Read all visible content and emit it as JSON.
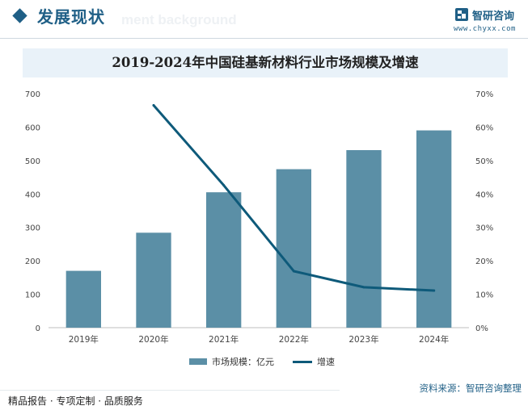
{
  "header": {
    "section_title": "发展现状",
    "ghost_text": "ment background"
  },
  "logo": {
    "name": "智研咨询",
    "url": "www.chyxx.com"
  },
  "chart_data": {
    "type": "bar",
    "title": "2019-2024年中国硅基新材料行业市场规模及增速",
    "categories": [
      "2019年",
      "2020年",
      "2021年",
      "2022年",
      "2023年",
      "2024年"
    ],
    "series": [
      {
        "name": "市场规模：亿元",
        "type": "bar",
        "axis": "left",
        "values": [
          170,
          284,
          405,
          474,
          531,
          590
        ],
        "color": "#5b8fa6"
      },
      {
        "name": "增速",
        "type": "line",
        "axis": "right",
        "values": [
          null,
          66.5,
          42.6,
          16.9,
          12.1,
          11.1
        ],
        "color": "#0e5a7a"
      }
    ],
    "y_left": {
      "min": 0,
      "max": 700,
      "step": 100,
      "ticks": [
        "0",
        "100",
        "200",
        "300",
        "400",
        "500",
        "600",
        "700"
      ]
    },
    "y_right": {
      "min": 0,
      "max": 70,
      "step": 10,
      "ticks": [
        "0%",
        "10%",
        "20%",
        "30%",
        "40%",
        "50%",
        "60%",
        "70%"
      ]
    },
    "grid": false,
    "legend_position": "bottom"
  },
  "footer": {
    "source": "资料来源：智研咨询整理",
    "slogan": "精品报告 · 专项定制 · 品质服务"
  }
}
